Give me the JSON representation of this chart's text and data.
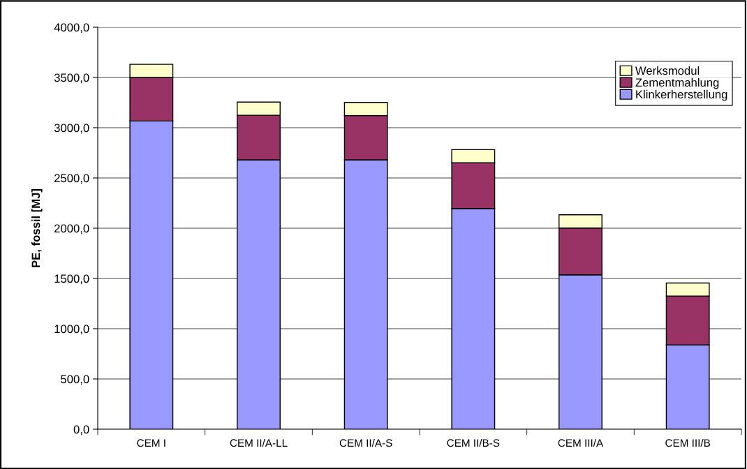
{
  "chart_data": {
    "type": "bar",
    "stacked": true,
    "ylabel": "PE, fossil [MJ]",
    "categories": [
      "CEM I",
      "CEM II/A-LL",
      "CEM II/A-S",
      "CEM II/B-S",
      "CEM III/A",
      "CEM III/B"
    ],
    "series": [
      {
        "name": "Klinkerherstellung",
        "color": "#9999ff",
        "values": [
          3067,
          2681,
          2681,
          2196,
          1536,
          839
        ]
      },
      {
        "name": "Zementmahlung",
        "color": "#993366",
        "values": [
          433,
          443,
          440,
          455,
          466,
          486
        ]
      },
      {
        "name": "Werksmodul",
        "color": "#ffffcc",
        "values": [
          131,
          131,
          131,
          131,
          132,
          130
        ]
      }
    ],
    "ylim": [
      0,
      4000
    ],
    "yticks": [
      {
        "value": 0,
        "label": "0,0"
      },
      {
        "value": 500,
        "label": "500,0"
      },
      {
        "value": 1000,
        "label": "1000,0"
      },
      {
        "value": 1500,
        "label": "1500,0"
      },
      {
        "value": 2000,
        "label": "2000,0"
      },
      {
        "value": 2500,
        "label": "2500,0"
      },
      {
        "value": 3000,
        "label": "3000,0"
      },
      {
        "value": 3500,
        "label": "3500,0"
      },
      {
        "value": 4000,
        "label": "4000,0"
      }
    ],
    "grid": "y",
    "legend": "top right"
  }
}
